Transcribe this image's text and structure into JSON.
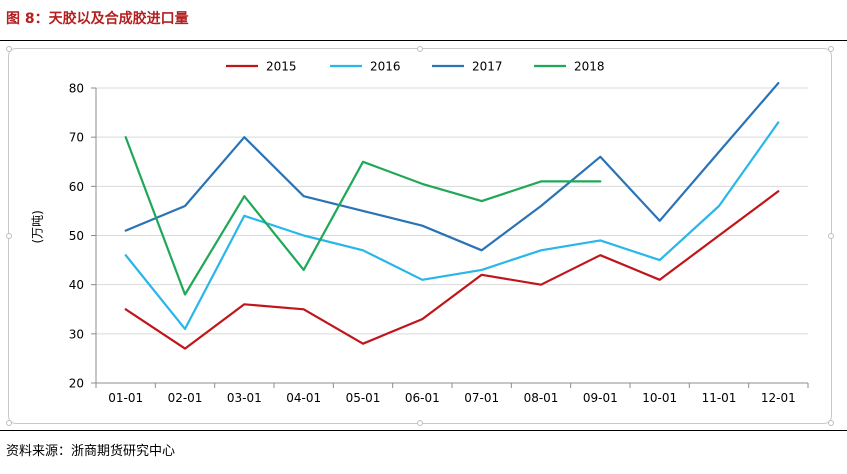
{
  "figure": {
    "title": "图 8：天胶以及合成胶进口量",
    "source": "资料来源：浙商期货研究中心"
  },
  "colors": {
    "title": "#b41e1e",
    "2015": "#c0161b",
    "2016": "#29b6e8",
    "2017": "#2a73b5",
    "2018": "#1fa858",
    "grid": "#d9d9d9",
    "axis": "#8c8c8c"
  },
  "chart_data": {
    "type": "line",
    "ylabel": "(万吨)",
    "xlabel": "",
    "ylim": [
      20,
      80
    ],
    "yticks": [
      20,
      30,
      40,
      50,
      60,
      70,
      80
    ],
    "grid": true,
    "legend_position": "top-center",
    "categories": [
      "01-01",
      "02-01",
      "03-01",
      "04-01",
      "05-01",
      "06-01",
      "07-01",
      "08-01",
      "09-01",
      "10-01",
      "11-01",
      "12-01"
    ],
    "series": [
      {
        "name": "2015",
        "color_key": "2015",
        "values": [
          35,
          27,
          36,
          35,
          28,
          33,
          42,
          40,
          46,
          41,
          50,
          59
        ]
      },
      {
        "name": "2016",
        "color_key": "2016",
        "values": [
          46,
          31,
          54,
          50,
          47,
          41,
          43,
          47,
          49,
          45,
          56,
          73
        ]
      },
      {
        "name": "2017",
        "color_key": "2017",
        "values": [
          51,
          56,
          70,
          58,
          55,
          52,
          47,
          56,
          66,
          53,
          67,
          81
        ]
      },
      {
        "name": "2018",
        "color_key": "2018",
        "values": [
          70,
          38,
          58,
          43,
          65,
          60.5,
          57,
          61,
          61,
          null,
          null,
          null
        ]
      }
    ]
  }
}
